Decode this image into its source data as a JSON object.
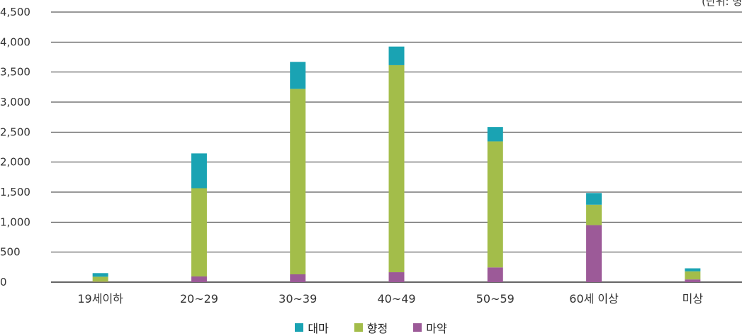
{
  "chart_data": {
    "type": "bar",
    "stacked": true,
    "unit_note": "(단위: 명)",
    "categories": [
      "19세이하",
      "20~29",
      "30~39",
      "40~49",
      "50~59",
      "60세 이상",
      "미상"
    ],
    "series": [
      {
        "name": "마약",
        "color": "#9c5a98",
        "values": [
          5,
          95,
          130,
          165,
          245,
          950,
          45
        ]
      },
      {
        "name": "향정",
        "color": "#a3bd4a",
        "values": [
          85,
          1470,
          3090,
          3450,
          2100,
          340,
          135
        ]
      },
      {
        "name": "대마",
        "color": "#1aa3b3",
        "values": [
          60,
          580,
          450,
          310,
          240,
          195,
          50
        ]
      }
    ],
    "legend_order": [
      "대마",
      "향정",
      "마약"
    ],
    "y_ticks": [
      "0",
      "500",
      "1,000",
      "1,500",
      "2,000",
      "2,500",
      "3,000",
      "3,500",
      "4,000",
      "4,500"
    ],
    "ylim": [
      0,
      4500
    ],
    "grid": true,
    "legend_position": "bottom"
  }
}
